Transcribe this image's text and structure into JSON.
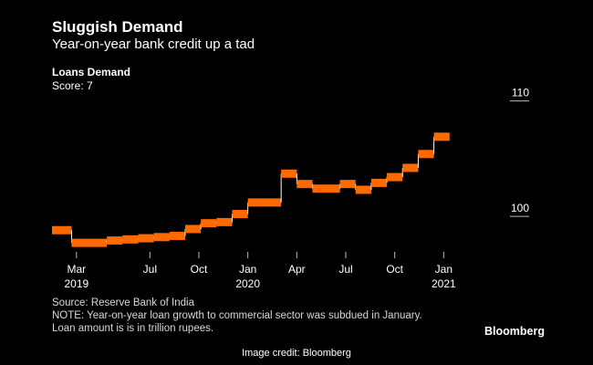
{
  "header": {
    "title": "Sluggish Demand",
    "subtitle": "Year-on-year bank credit up a tad"
  },
  "panel": {
    "title": "Loans Demand",
    "subtitle": "Score: 7"
  },
  "chart_data": {
    "type": "line",
    "style": "step",
    "title": "Loans Demand",
    "xlabel": "",
    "ylabel": "",
    "y_axis_side": "right",
    "ylim": [
      97,
      111
    ],
    "yticks": [
      100,
      110
    ],
    "xlim": [
      2019.0,
      2021.25
    ],
    "xticks": [
      {
        "x": 2019.125,
        "label": "Mar",
        "sublabel": "2019"
      },
      {
        "x": 2019.5,
        "label": "Jul",
        "sublabel": ""
      },
      {
        "x": 2019.75,
        "label": "Oct",
        "sublabel": ""
      },
      {
        "x": 2020.0,
        "label": "Jan",
        "sublabel": "2020"
      },
      {
        "x": 2020.25,
        "label": "Apr",
        "sublabel": ""
      },
      {
        "x": 2020.5,
        "label": "Jul",
        "sublabel": ""
      },
      {
        "x": 2020.75,
        "label": "Oct",
        "sublabel": ""
      },
      {
        "x": 2021.0,
        "label": "Jan",
        "sublabel": "2021"
      }
    ],
    "series": [
      {
        "name": "Loan amount (trillion rupees)",
        "color": "#ff6a00",
        "points": [
          {
            "x0": 2019.0,
            "x1": 2019.1,
            "y": 98.8
          },
          {
            "x0": 2019.1,
            "x1": 2019.28,
            "y": 97.7
          },
          {
            "x0": 2019.28,
            "x1": 2019.36,
            "y": 97.9
          },
          {
            "x0": 2019.36,
            "x1": 2019.44,
            "y": 98.0
          },
          {
            "x0": 2019.44,
            "x1": 2019.52,
            "y": 98.1
          },
          {
            "x0": 2019.52,
            "x1": 2019.6,
            "y": 98.2
          },
          {
            "x0": 2019.6,
            "x1": 2019.68,
            "y": 98.3
          },
          {
            "x0": 2019.68,
            "x1": 2019.76,
            "y": 98.9
          },
          {
            "x0": 2019.76,
            "x1": 2019.84,
            "y": 99.4
          },
          {
            "x0": 2019.84,
            "x1": 2019.92,
            "y": 99.5
          },
          {
            "x0": 2019.92,
            "x1": 2020.0,
            "y": 100.2
          },
          {
            "x0": 2020.0,
            "x1": 2020.17,
            "y": 101.2
          },
          {
            "x0": 2020.17,
            "x1": 2020.25,
            "y": 103.7
          },
          {
            "x0": 2020.25,
            "x1": 2020.33,
            "y": 102.8
          },
          {
            "x0": 2020.33,
            "x1": 2020.47,
            "y": 102.4
          },
          {
            "x0": 2020.47,
            "x1": 2020.55,
            "y": 102.8
          },
          {
            "x0": 2020.55,
            "x1": 2020.63,
            "y": 102.3
          },
          {
            "x0": 2020.63,
            "x1": 2020.71,
            "y": 102.9
          },
          {
            "x0": 2020.71,
            "x1": 2020.79,
            "y": 103.4
          },
          {
            "x0": 2020.79,
            "x1": 2020.87,
            "y": 104.2
          },
          {
            "x0": 2020.87,
            "x1": 2020.95,
            "y": 105.4
          },
          {
            "x0": 2020.95,
            "x1": 2021.03,
            "y": 106.9
          }
        ]
      }
    ]
  },
  "footer": {
    "source": "Source: Reserve Bank of India",
    "note": "NOTE: Year-on-year loan growth to commercial sector was subdued in January.",
    "unit_note": "Loan amount is is in trillion rupees.",
    "brand": "Bloomberg",
    "credit": "Image credit: Bloomberg"
  }
}
